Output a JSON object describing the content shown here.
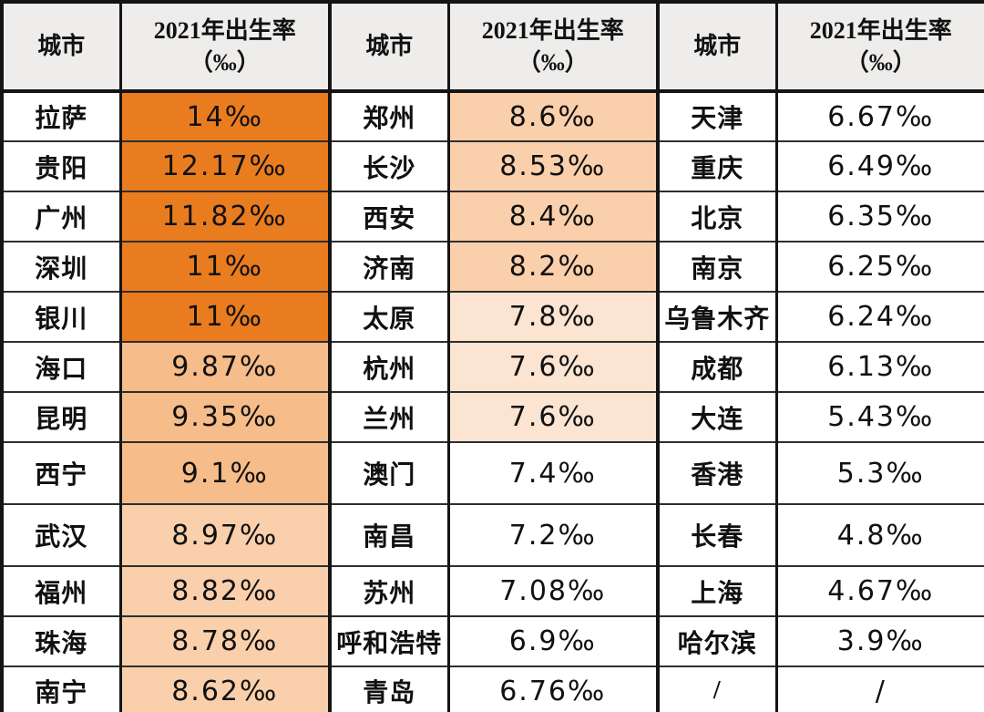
{
  "table": {
    "header": {
      "city": "城市",
      "rate": "2021年出生率\n（‰）"
    },
    "placeholder": "/",
    "rows": [
      [
        {
          "city": "拉萨",
          "rate": "14‰",
          "tier": "dark"
        },
        {
          "city": "郑州",
          "rate": "8.6‰",
          "tier": "light"
        },
        {
          "city": "天津",
          "rate": "6.67‰",
          "tier": "none"
        }
      ],
      [
        {
          "city": "贵阳",
          "rate": "12.17‰",
          "tier": "dark"
        },
        {
          "city": "长沙",
          "rate": "8.53‰",
          "tier": "light"
        },
        {
          "city": "重庆",
          "rate": "6.49‰",
          "tier": "none"
        }
      ],
      [
        {
          "city": "广州",
          "rate": "11.82‰",
          "tier": "dark"
        },
        {
          "city": "西安",
          "rate": "8.4‰",
          "tier": "light"
        },
        {
          "city": "北京",
          "rate": "6.35‰",
          "tier": "none"
        }
      ],
      [
        {
          "city": "深圳",
          "rate": "11‰",
          "tier": "dark"
        },
        {
          "city": "济南",
          "rate": "8.2‰",
          "tier": "light"
        },
        {
          "city": "南京",
          "rate": "6.25‰",
          "tier": "none"
        }
      ],
      [
        {
          "city": "银川",
          "rate": "11‰",
          "tier": "dark"
        },
        {
          "city": "太原",
          "rate": "7.8‰",
          "tier": "xlight"
        },
        {
          "city": "乌鲁木齐",
          "rate": "6.24‰",
          "tier": "none"
        }
      ],
      [
        {
          "city": "海口",
          "rate": "9.87‰",
          "tier": "medium"
        },
        {
          "city": "杭州",
          "rate": "7.6‰",
          "tier": "xlight"
        },
        {
          "city": "成都",
          "rate": "6.13‰",
          "tier": "none"
        }
      ],
      [
        {
          "city": "昆明",
          "rate": "9.35‰",
          "tier": "medium"
        },
        {
          "city": "兰州",
          "rate": "7.6‰",
          "tier": "xlight"
        },
        {
          "city": "大连",
          "rate": "5.43‰",
          "tier": "none"
        }
      ],
      [
        {
          "city": "西宁",
          "rate": "9.1‰",
          "tier": "medium"
        },
        {
          "city": "澳门",
          "rate": "7.4‰",
          "tier": "none"
        },
        {
          "city": "香港",
          "rate": "5.3‰",
          "tier": "none"
        }
      ],
      [
        {
          "city": "武汉",
          "rate": "8.97‰",
          "tier": "light"
        },
        {
          "city": "南昌",
          "rate": "7.2‰",
          "tier": "none"
        },
        {
          "city": "长春",
          "rate": "4.8‰",
          "tier": "none"
        }
      ],
      [
        {
          "city": "福州",
          "rate": "8.82‰",
          "tier": "light"
        },
        {
          "city": "苏州",
          "rate": "7.08‰",
          "tier": "none"
        },
        {
          "city": "上海",
          "rate": "4.67‰",
          "tier": "none"
        }
      ],
      [
        {
          "city": "珠海",
          "rate": "8.78‰",
          "tier": "light"
        },
        {
          "city": "呼和浩特",
          "rate": "6.9‰",
          "tier": "none"
        },
        {
          "city": "哈尔滨",
          "rate": "3.9‰",
          "tier": "none"
        }
      ],
      [
        {
          "city": "南宁",
          "rate": "8.62‰",
          "tier": "light"
        },
        {
          "city": "青岛",
          "rate": "6.76‰",
          "tier": "none"
        },
        {
          "city": "/",
          "rate": "/",
          "tier": "none"
        }
      ]
    ]
  },
  "colors": {
    "tiers": {
      "dark": "#EA7C20",
      "medium": "#F6BC8A",
      "light": "#FACFAB",
      "xlight": "#FBE4D1",
      "none": "#FFFFFF"
    },
    "header_bg": "#EEEDEB",
    "border": "#141414",
    "text": "#111111"
  },
  "chart_data": {
    "type": "table",
    "columns": [
      "城市",
      "2021年出生率（‰）",
      "城市",
      "2021年出生率（‰）",
      "城市",
      "2021年出生率（‰）"
    ],
    "unit": "‰",
    "year": 2021,
    "records": [
      {
        "city": "拉萨",
        "birth_rate": 14
      },
      {
        "city": "贵阳",
        "birth_rate": 12.17
      },
      {
        "city": "广州",
        "birth_rate": 11.82
      },
      {
        "city": "深圳",
        "birth_rate": 11
      },
      {
        "city": "银川",
        "birth_rate": 11
      },
      {
        "city": "海口",
        "birth_rate": 9.87
      },
      {
        "city": "昆明",
        "birth_rate": 9.35
      },
      {
        "city": "西宁",
        "birth_rate": 9.1
      },
      {
        "city": "武汉",
        "birth_rate": 8.97
      },
      {
        "city": "福州",
        "birth_rate": 8.82
      },
      {
        "city": "珠海",
        "birth_rate": 8.78
      },
      {
        "city": "南宁",
        "birth_rate": 8.62
      },
      {
        "city": "郑州",
        "birth_rate": 8.6
      },
      {
        "city": "长沙",
        "birth_rate": 8.53
      },
      {
        "city": "西安",
        "birth_rate": 8.4
      },
      {
        "city": "济南",
        "birth_rate": 8.2
      },
      {
        "city": "太原",
        "birth_rate": 7.8
      },
      {
        "city": "杭州",
        "birth_rate": 7.6
      },
      {
        "city": "兰州",
        "birth_rate": 7.6
      },
      {
        "city": "澳门",
        "birth_rate": 7.4
      },
      {
        "city": "南昌",
        "birth_rate": 7.2
      },
      {
        "city": "苏州",
        "birth_rate": 7.08
      },
      {
        "city": "呼和浩特",
        "birth_rate": 6.9
      },
      {
        "city": "青岛",
        "birth_rate": 6.76
      },
      {
        "city": "天津",
        "birth_rate": 6.67
      },
      {
        "city": "重庆",
        "birth_rate": 6.49
      },
      {
        "city": "北京",
        "birth_rate": 6.35
      },
      {
        "city": "南京",
        "birth_rate": 6.25
      },
      {
        "city": "乌鲁木齐",
        "birth_rate": 6.24
      },
      {
        "city": "成都",
        "birth_rate": 6.13
      },
      {
        "city": "大连",
        "birth_rate": 5.43
      },
      {
        "city": "香港",
        "birth_rate": 5.3
      },
      {
        "city": "长春",
        "birth_rate": 4.8
      },
      {
        "city": "上海",
        "birth_rate": 4.67
      },
      {
        "city": "哈尔滨",
        "birth_rate": 3.9
      }
    ]
  }
}
